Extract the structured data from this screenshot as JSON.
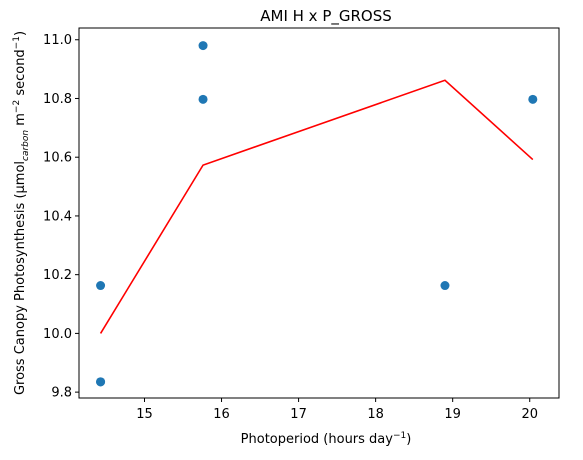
{
  "chart_data": {
    "type": "scatter",
    "title": "AMI H x P_GROSS",
    "xlabel": {
      "base": "Photoperiod (hours day",
      "sup": "−1",
      "close": ")"
    },
    "ylabel": {
      "part1": "Gross Canopy Photosynthesis (µmol",
      "sub": "carbon",
      "part2": " m",
      "sup1": "−2",
      "part3": " second",
      "sup2": "−1",
      "close": ")"
    },
    "xlim": [
      14.15,
      20.38
    ],
    "ylim": [
      9.78,
      11.04
    ],
    "xticks": [
      15,
      16,
      17,
      18,
      19,
      20
    ],
    "yticks": [
      9.8,
      10.0,
      10.2,
      10.4,
      10.6,
      10.8,
      11.0
    ],
    "ytick_labels": [
      "9.8",
      "10.0",
      "10.2",
      "10.4",
      "10.6",
      "10.8",
      "11.0"
    ],
    "xtick_labels": [
      "15",
      "16",
      "17",
      "18",
      "19",
      "20"
    ],
    "grid": false,
    "series": [
      {
        "type": "scatter",
        "color": "#1f77b4",
        "x": [
          14.43,
          14.43,
          14.43,
          15.76,
          15.76,
          18.9,
          20.04
        ],
        "y": [
          9.835,
          9.835,
          10.163,
          10.98,
          10.797,
          10.163,
          10.797
        ]
      },
      {
        "type": "line",
        "color": "#ff0000",
        "x": [
          14.43,
          15.76,
          18.9,
          20.04
        ],
        "y": [
          10.0,
          10.573,
          10.862,
          10.592
        ]
      }
    ]
  }
}
